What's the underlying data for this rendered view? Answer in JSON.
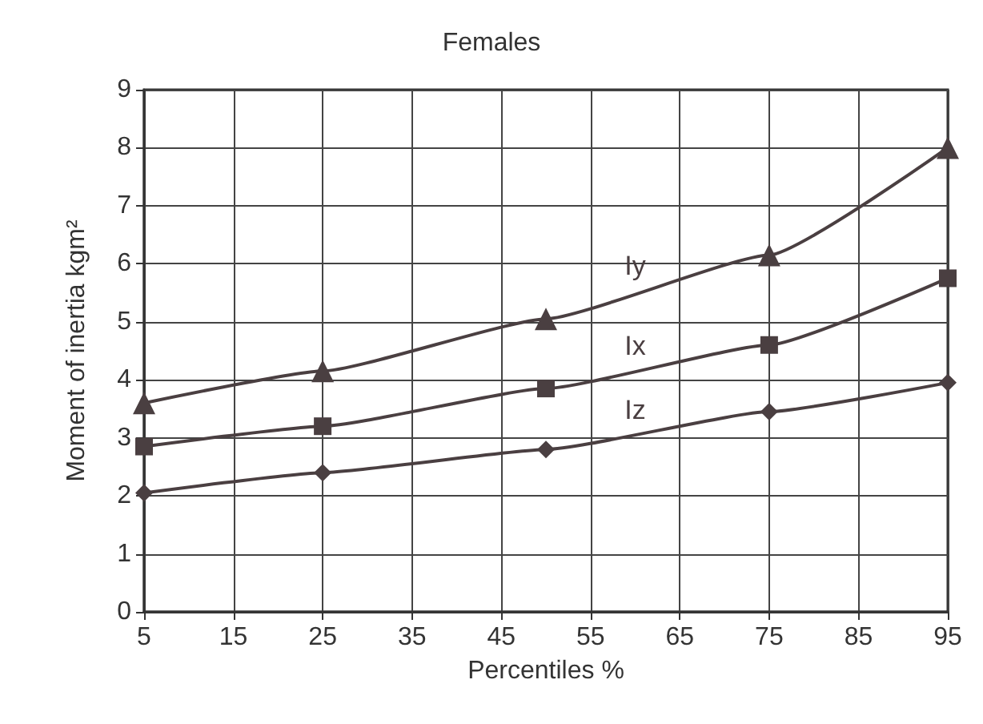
{
  "chart_data": {
    "type": "line",
    "title": "Females",
    "xlabel": "Percentiles %",
    "ylabel": "Moment of inertia kgm²",
    "x": [
      5,
      25,
      50,
      75,
      95
    ],
    "series": [
      {
        "name": "Iy",
        "color": "#4a3f41",
        "marker": "triangle",
        "values": [
          3.6,
          4.15,
          5.05,
          6.15,
          8.0
        ]
      },
      {
        "name": "Ix",
        "color": "#4a3f41",
        "marker": "square",
        "values": [
          2.85,
          3.2,
          3.85,
          4.6,
          5.75
        ]
      },
      {
        "name": "Iz",
        "color": "#4a3f41",
        "marker": "diamond",
        "values": [
          2.05,
          2.4,
          2.8,
          3.45,
          3.95
        ]
      }
    ],
    "xlim": [
      5,
      95
    ],
    "xticks": [
      5,
      15,
      25,
      35,
      45,
      55,
      65,
      75,
      85,
      95
    ],
    "ylim": [
      0,
      9
    ],
    "yticks": [
      0,
      1,
      2,
      3,
      4,
      5,
      6,
      7,
      8,
      9
    ],
    "grid": true,
    "legend": false,
    "line_style": "solid"
  }
}
